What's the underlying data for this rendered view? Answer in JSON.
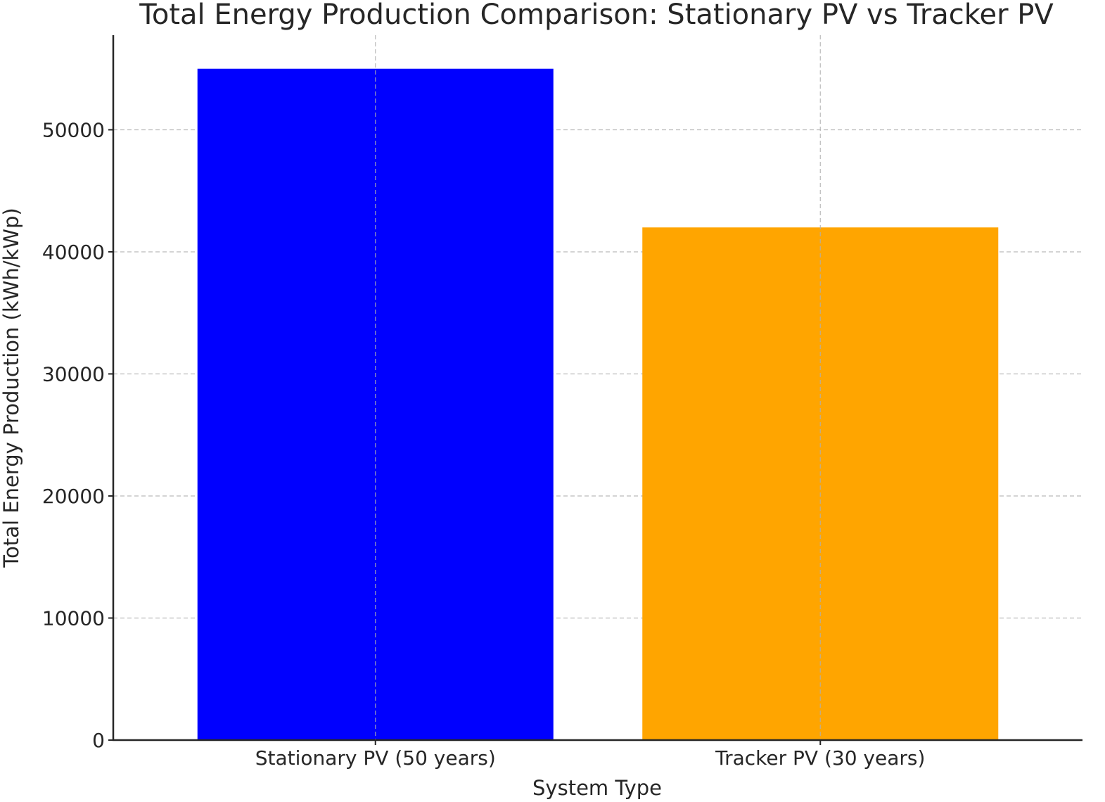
{
  "chart_data": {
    "type": "bar",
    "title": "Total Energy Production Comparison: Stationary PV vs Tracker PV",
    "xlabel": "System Type",
    "ylabel": "Total Energy Production (kWh/kWp)",
    "categories": [
      "Stationary PV (50 years)",
      "Tracker PV (30 years)"
    ],
    "values": [
      55000,
      42000
    ],
    "colors": [
      "#0000ff",
      "#ffa500"
    ],
    "ylim": [
      0,
      57750
    ],
    "yticks": [
      0,
      10000,
      20000,
      30000,
      40000,
      50000
    ],
    "ytick_labels": [
      "0",
      "10000",
      "20000",
      "30000",
      "40000",
      "50000"
    ],
    "grid": true,
    "legend": "none"
  }
}
